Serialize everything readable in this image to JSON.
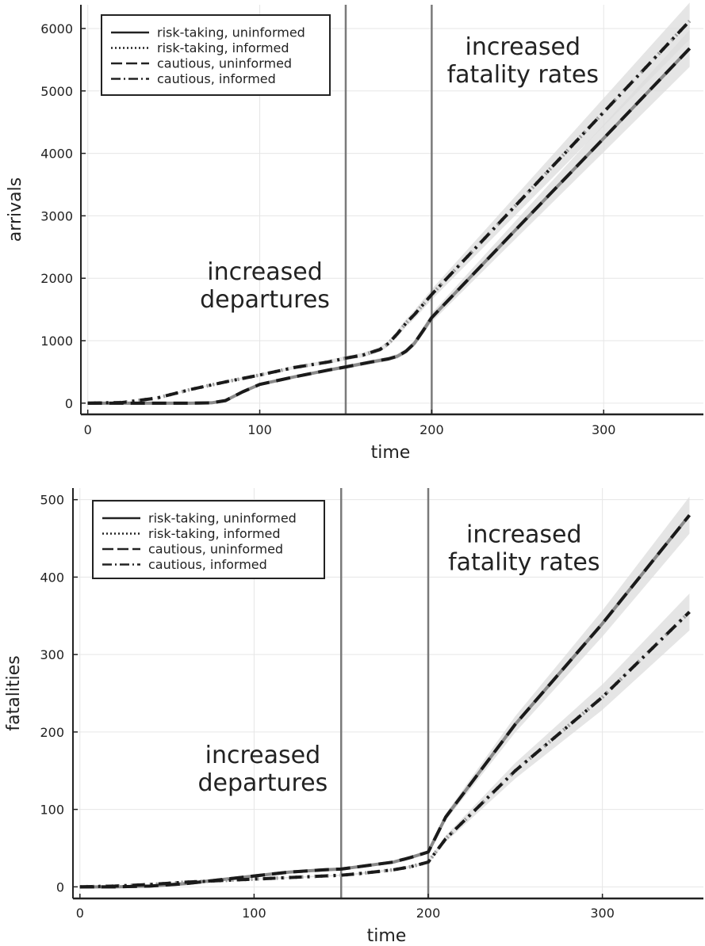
{
  "chart_data": [
    {
      "type": "line",
      "xlabel": "time",
      "ylabel": "arrivals",
      "xlim": [
        -4,
        358
      ],
      "ylim": [
        -180,
        6380
      ],
      "xticks": [
        0,
        100,
        200,
        300
      ],
      "yticks": [
        0,
        1000,
        2000,
        3000,
        4000,
        5000,
        6000
      ],
      "grid": true,
      "legend_position": "top-left",
      "vlines": [
        150,
        200
      ],
      "annotations": [
        {
          "lines": [
            "increased",
            "departures"
          ],
          "x": 103,
          "y": 1980
        },
        {
          "lines": [
            "increased",
            "fatality rates"
          ],
          "x": 253,
          "y": 5580
        }
      ],
      "series": [
        {
          "name": "risk-taking, uninformed",
          "dash": "solid",
          "x": [
            0,
            20,
            40,
            60,
            72,
            80,
            90,
            100,
            120,
            140,
            150,
            165,
            175,
            180,
            185,
            190,
            195,
            200,
            250,
            300,
            350
          ],
          "y": [
            0,
            0,
            0,
            0,
            5,
            40,
            180,
            300,
            420,
            530,
            580,
            660,
            710,
            750,
            830,
            960,
            1160,
            1370,
            2810,
            4240,
            5680
          ]
        },
        {
          "name": "risk-taking, informed",
          "dash": "dotted",
          "x": [
            0,
            20,
            40,
            60,
            80,
            100,
            120,
            140,
            150,
            160,
            170,
            175,
            180,
            185,
            190,
            200,
            250,
            300,
            350
          ],
          "y": [
            0,
            10,
            80,
            220,
            340,
            450,
            570,
            660,
            720,
            770,
            860,
            960,
            1110,
            1280,
            1420,
            1740,
            3200,
            4660,
            6120
          ]
        },
        {
          "name": "cautious, uninformed",
          "dash": "dashed",
          "x": [
            0,
            20,
            40,
            60,
            72,
            80,
            90,
            100,
            120,
            140,
            150,
            165,
            175,
            180,
            185,
            190,
            195,
            200,
            250,
            300,
            350
          ],
          "y": [
            0,
            0,
            0,
            0,
            5,
            40,
            180,
            300,
            420,
            530,
            580,
            660,
            710,
            750,
            830,
            960,
            1160,
            1370,
            2810,
            4240,
            5680
          ]
        },
        {
          "name": "cautious, informed",
          "dash": "dashdot",
          "x": [
            0,
            20,
            40,
            60,
            80,
            100,
            120,
            140,
            150,
            160,
            170,
            175,
            180,
            185,
            190,
            200,
            250,
            300,
            350
          ],
          "y": [
            0,
            10,
            80,
            220,
            340,
            450,
            570,
            660,
            720,
            770,
            860,
            960,
            1110,
            1280,
            1420,
            1740,
            3200,
            4660,
            6120
          ]
        }
      ]
    },
    {
      "type": "line",
      "xlabel": "time",
      "ylabel": "fatalities",
      "xlim": [
        -4,
        358
      ],
      "ylim": [
        -15,
        515
      ],
      "xticks": [
        0,
        100,
        200,
        300
      ],
      "yticks": [
        0,
        100,
        200,
        300,
        400,
        500
      ],
      "grid": true,
      "legend_position": "top-left",
      "vlines": [
        150,
        200
      ],
      "annotations": [
        {
          "lines": [
            "increased",
            "departures"
          ],
          "x": 105,
          "y": 160
        },
        {
          "lines": [
            "increased",
            "fatality rates"
          ],
          "x": 255,
          "y": 445
        }
      ],
      "series": [
        {
          "name": "risk-taking, uninformed",
          "dash": "solid",
          "x": [
            0,
            20,
            40,
            60,
            80,
            100,
            120,
            140,
            150,
            160,
            180,
            190,
            200,
            210,
            250,
            300,
            350
          ],
          "y": [
            0,
            0,
            1,
            4,
            9,
            14,
            19,
            22,
            23,
            26,
            32,
            38,
            45,
            90,
            210,
            340,
            480
          ]
        },
        {
          "name": "risk-taking, informed",
          "dash": "dotted",
          "x": [
            0,
            20,
            40,
            60,
            80,
            100,
            120,
            140,
            150,
            160,
            180,
            190,
            200,
            210,
            250,
            300,
            350
          ],
          "y": [
            0,
            1,
            3,
            6,
            8,
            10,
            12,
            14,
            15,
            17,
            22,
            26,
            32,
            62,
            150,
            245,
            355
          ]
        },
        {
          "name": "cautious, uninformed",
          "dash": "dashed",
          "x": [
            0,
            20,
            40,
            60,
            80,
            100,
            120,
            140,
            150,
            160,
            180,
            190,
            200,
            210,
            250,
            300,
            350
          ],
          "y": [
            0,
            0,
            1,
            4,
            9,
            14,
            19,
            22,
            23,
            26,
            32,
            38,
            45,
            90,
            210,
            340,
            480
          ]
        },
        {
          "name": "cautious, informed",
          "dash": "dashdot",
          "x": [
            0,
            20,
            40,
            60,
            80,
            100,
            120,
            140,
            150,
            160,
            180,
            190,
            200,
            210,
            250,
            300,
            350
          ],
          "y": [
            0,
            1,
            3,
            6,
            8,
            10,
            12,
            14,
            15,
            17,
            22,
            26,
            32,
            62,
            150,
            245,
            355
          ]
        }
      ]
    }
  ]
}
